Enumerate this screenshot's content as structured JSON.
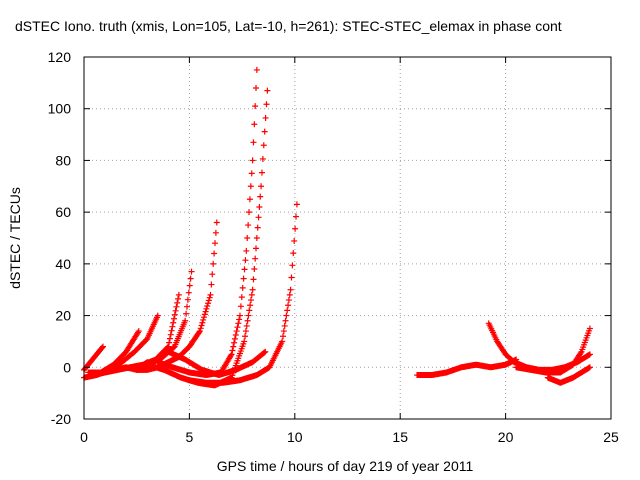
{
  "chart_data": {
    "type": "scatter",
    "title": "dSTEC Iono. truth (xmis, Lon=105, Lat=-10, h=261): STEC-STEC_elemax in phase cont",
    "xlabel": "GPS time / hours of day 219 of year 2011",
    "ylabel": "dSTEC  / TECUs",
    "xlim": [
      0,
      25
    ],
    "ylim": [
      -20,
      120
    ],
    "x_ticks": [
      "0",
      "5",
      "10",
      "15",
      "20",
      "25"
    ],
    "y_ticks": [
      "-20",
      "0",
      "20",
      "40",
      "60",
      "80",
      "100",
      "120"
    ],
    "grid": true,
    "marker": "+",
    "marker_color": "#ff0000",
    "series": [
      {
        "x": [
          0.0,
          0.3,
          0.6,
          0.9
        ],
        "y": [
          -1,
          2,
          5,
          8
        ]
      },
      {
        "x": [
          0.0,
          0.6,
          1.2,
          1.8,
          2.4,
          3.0,
          3.5
        ],
        "y": [
          -4,
          -3,
          -1,
          2,
          6,
          11,
          20
        ]
      },
      {
        "x": [
          0.2,
          0.8,
          1.4,
          2.0,
          2.6
        ],
        "y": [
          -2,
          -2,
          1,
          6,
          14
        ]
      },
      {
        "x": [
          0.5,
          1.0,
          1.5,
          2.0,
          2.5,
          3.0
        ],
        "y": [
          -3,
          -2,
          -1,
          0,
          -1,
          2
        ]
      },
      {
        "x": [
          1.0,
          1.6,
          2.2,
          2.8,
          3.4,
          4.0,
          4.5
        ],
        "y": [
          -2,
          -1,
          0,
          1,
          3,
          8,
          28
        ]
      },
      {
        "x": [
          1.5,
          2.2,
          2.9,
          3.6,
          4.3,
          4.8,
          5.1
        ],
        "y": [
          -1,
          0,
          1,
          3,
          8,
          18,
          37
        ]
      },
      {
        "x": [
          2.5,
          3.0,
          3.5,
          4.0,
          4.5,
          5.0,
          5.5,
          6.0,
          6.3
        ],
        "y": [
          -1,
          -1,
          0,
          2,
          4,
          8,
          14,
          28,
          56
        ]
      },
      {
        "x": [
          3.5,
          4.2,
          5.0,
          5.8,
          6.5,
          7.0,
          7.4,
          7.7,
          8.0,
          8.2
        ],
        "y": [
          2,
          0,
          -2,
          -3,
          -2,
          5,
          20,
          45,
          80,
          115
        ]
      },
      {
        "x": [
          3.0,
          3.8,
          4.6,
          5.4,
          6.2,
          7.0,
          7.6,
          8.0,
          8.4,
          8.7
        ],
        "y": [
          1,
          -1,
          -4,
          -6,
          -7,
          -4,
          10,
          30,
          70,
          107
        ]
      },
      {
        "x": [
          5.0,
          5.8,
          6.6,
          7.4,
          8.2,
          8.8,
          9.4,
          9.8,
          10.1
        ],
        "y": [
          -5,
          -6,
          -6,
          -5,
          -3,
          0,
          10,
          30,
          63
        ]
      },
      {
        "x": [
          4.0,
          4.8,
          5.6,
          6.4,
          7.2,
          8.0,
          8.6
        ],
        "y": [
          6,
          3,
          -1,
          -3,
          -1,
          2,
          6
        ]
      },
      {
        "x": [
          15.8,
          16.5,
          17.2,
          17.9,
          18.6,
          19.3,
          20.0,
          20.5
        ],
        "y": [
          -3,
          -3,
          -2,
          0,
          1,
          0,
          1,
          3
        ]
      },
      {
        "x": [
          19.2,
          19.6,
          20.0,
          20.4,
          21.0,
          21.6,
          22.2,
          22.8,
          23.4,
          24.0
        ],
        "y": [
          17,
          10,
          5,
          2,
          0,
          -1,
          -1,
          0,
          2,
          5
        ]
      },
      {
        "x": [
          20.5,
          21.2,
          21.9,
          22.6,
          23.2,
          23.6,
          24.0
        ],
        "y": [
          0,
          -1,
          -2,
          -2,
          1,
          6,
          15
        ]
      },
      {
        "x": [
          22.0,
          22.6,
          23.2,
          23.8,
          24.0
        ],
        "y": [
          -4,
          -6,
          -4,
          -1,
          0
        ]
      }
    ]
  }
}
